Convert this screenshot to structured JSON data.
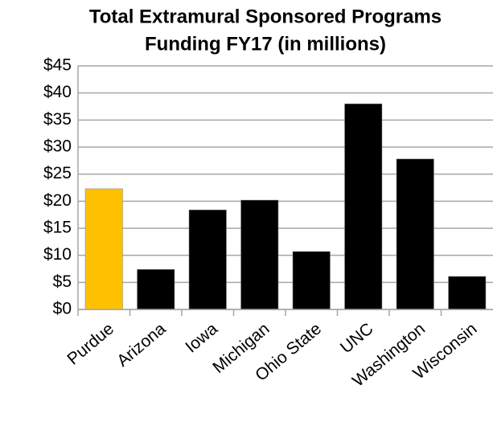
{
  "chart_data": {
    "type": "bar",
    "title": [
      "Total Extramural Sponsored Programs",
      "Funding FY17 (in millions)"
    ],
    "categories": [
      "Purdue",
      "Arizona",
      "Iowa",
      "Michigan",
      "Ohio State",
      "UNC",
      "Washington",
      "Wisconsin"
    ],
    "values": [
      22.3,
      7.4,
      18.4,
      20.2,
      10.7,
      38.0,
      27.8,
      6.1
    ],
    "colors": [
      "#ffc000",
      "#000000",
      "#000000",
      "#000000",
      "#000000",
      "#000000",
      "#000000",
      "#000000"
    ],
    "ylim": [
      0,
      45
    ],
    "yticks": [
      {
        "value": 0,
        "label": "$0"
      },
      {
        "value": 5,
        "label": "$5"
      },
      {
        "value": 10,
        "label": "$10"
      },
      {
        "value": 15,
        "label": "$15"
      },
      {
        "value": 20,
        "label": "$20"
      },
      {
        "value": 25,
        "label": "$25"
      },
      {
        "value": 30,
        "label": "$30"
      },
      {
        "value": 35,
        "label": "$35"
      },
      {
        "value": 40,
        "label": "$40"
      },
      {
        "value": 45,
        "label": "$45"
      }
    ],
    "grid": true
  }
}
